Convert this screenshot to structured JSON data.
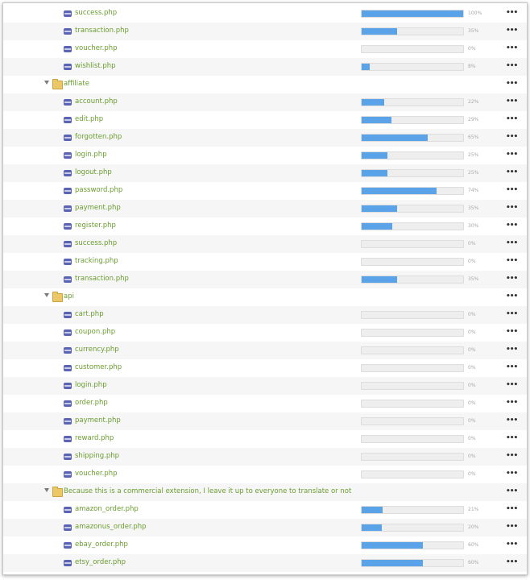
{
  "rows": [
    {
      "type": "file",
      "name": "success.php",
      "progress": 100,
      "pct": "100%"
    },
    {
      "type": "file",
      "name": "transaction.php",
      "progress": 35,
      "pct": "35%"
    },
    {
      "type": "file",
      "name": "voucher.php",
      "progress": 0,
      "pct": "0%"
    },
    {
      "type": "file",
      "name": "wishlist.php",
      "progress": 8,
      "pct": "8%"
    },
    {
      "type": "folder",
      "name": "affiliate"
    },
    {
      "type": "file",
      "name": "account.php",
      "progress": 22,
      "pct": "22%"
    },
    {
      "type": "file",
      "name": "edit.php",
      "progress": 29,
      "pct": "29%"
    },
    {
      "type": "file",
      "name": "forgotten.php",
      "progress": 65,
      "pct": "65%"
    },
    {
      "type": "file",
      "name": "login.php",
      "progress": 25,
      "pct": "25%"
    },
    {
      "type": "file",
      "name": "logout.php",
      "progress": 25,
      "pct": "25%"
    },
    {
      "type": "file",
      "name": "password.php",
      "progress": 74,
      "pct": "74%"
    },
    {
      "type": "file",
      "name": "payment.php",
      "progress": 35,
      "pct": "35%"
    },
    {
      "type": "file",
      "name": "register.php",
      "progress": 30,
      "pct": "30%"
    },
    {
      "type": "file",
      "name": "success.php",
      "progress": 0,
      "pct": "0%"
    },
    {
      "type": "file",
      "name": "tracking.php",
      "progress": 0,
      "pct": "0%"
    },
    {
      "type": "file",
      "name": "transaction.php",
      "progress": 35,
      "pct": "35%"
    },
    {
      "type": "folder",
      "name": "api"
    },
    {
      "type": "file",
      "name": "cart.php",
      "progress": 0,
      "pct": "0%"
    },
    {
      "type": "file",
      "name": "coupon.php",
      "progress": 0,
      "pct": "0%"
    },
    {
      "type": "file",
      "name": "currency.php",
      "progress": 0,
      "pct": "0%"
    },
    {
      "type": "file",
      "name": "customer.php",
      "progress": 0,
      "pct": "0%"
    },
    {
      "type": "file",
      "name": "login.php",
      "progress": 0,
      "pct": "0%"
    },
    {
      "type": "file",
      "name": "order.php",
      "progress": 0,
      "pct": "0%"
    },
    {
      "type": "file",
      "name": "payment.php",
      "progress": 0,
      "pct": "0%"
    },
    {
      "type": "file",
      "name": "reward.php",
      "progress": 0,
      "pct": "0%"
    },
    {
      "type": "file",
      "name": "shipping.php",
      "progress": 0,
      "pct": "0%"
    },
    {
      "type": "file",
      "name": "voucher.php",
      "progress": 0,
      "pct": "0%"
    },
    {
      "type": "folder",
      "name": "Because this is a commercial extension, I leave it up to everyone to translate or not"
    },
    {
      "type": "file",
      "name": "amazon_order.php",
      "progress": 21,
      "pct": "21%"
    },
    {
      "type": "file",
      "name": "amazonus_order.php",
      "progress": 20,
      "pct": "20%"
    },
    {
      "type": "file",
      "name": "ebay_order.php",
      "progress": 60,
      "pct": "60%"
    },
    {
      "type": "file",
      "name": "etsy_order.php",
      "progress": 60,
      "pct": "60%"
    }
  ],
  "more_label": "•••",
  "icons": {
    "file": "php-file-icon",
    "folder": "folder-icon",
    "expand": "expanded-triangle-icon",
    "more": "more-options-icon"
  },
  "colors": {
    "link": "#6a9d30",
    "bar_fill": "#5aa3e8",
    "bar_bg": "#eeeeee",
    "alt_row": "#f6f6f6"
  }
}
